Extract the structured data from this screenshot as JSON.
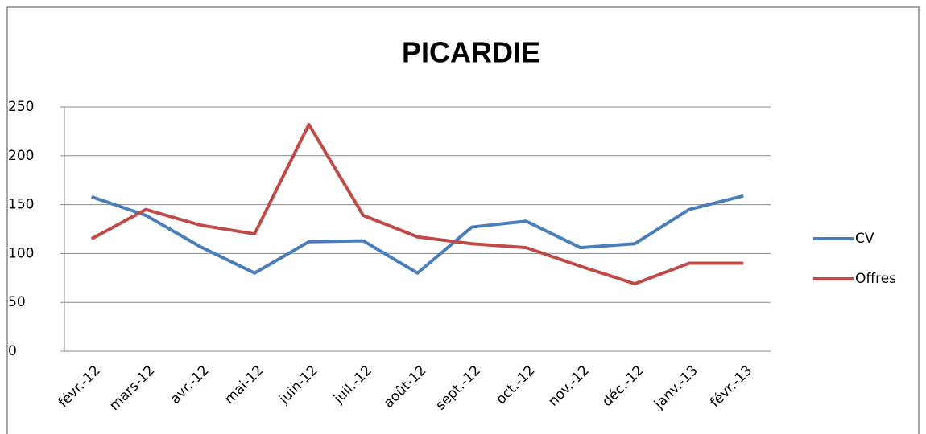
{
  "chart_data": {
    "type": "line",
    "title": "PICARDIE",
    "categories": [
      "févr.-12",
      "mars-12",
      "avr.-12",
      "mai-12",
      "juin-12",
      "juil.-12",
      "août-12",
      "sept.-12",
      "oct.-12",
      "nov.-12",
      "déc.-12",
      "janv.-13",
      "févr.-13"
    ],
    "series": [
      {
        "name": "CV",
        "color": "#4a7ebb",
        "values": [
          158,
          139,
          107,
          80,
          112,
          113,
          80,
          127,
          133,
          106,
          110,
          145,
          159
        ]
      },
      {
        "name": "Offres",
        "color": "#be4b48",
        "values": [
          115,
          145,
          129,
          120,
          232,
          139,
          117,
          110,
          106,
          87,
          69,
          90,
          90
        ]
      }
    ],
    "ylim": [
      0,
      250
    ],
    "yticks": [
      0,
      50,
      100,
      150,
      200,
      250
    ],
    "grid": true,
    "legend": "right"
  }
}
